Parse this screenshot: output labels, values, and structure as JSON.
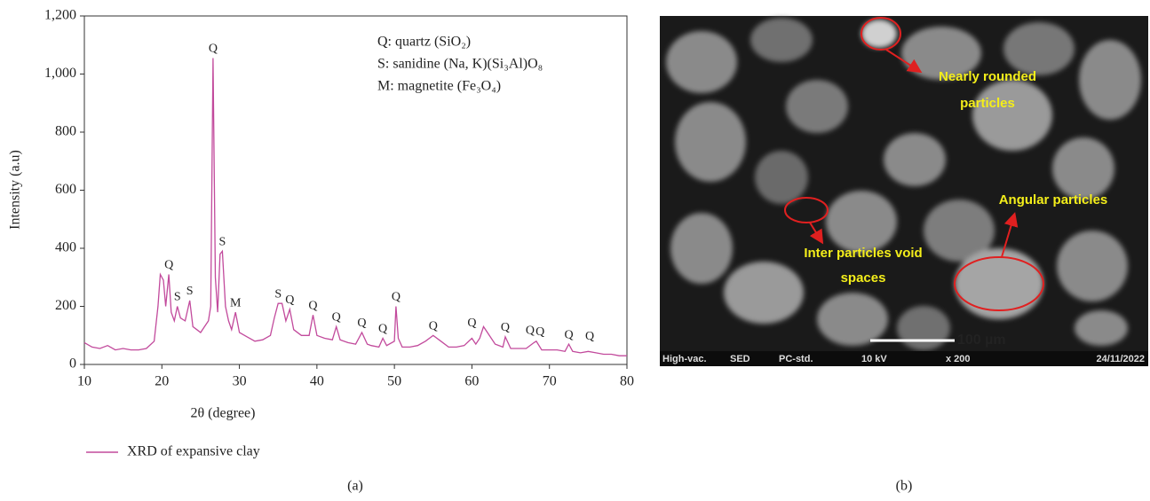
{
  "chart_data": {
    "type": "line",
    "xlabel": "2θ (degree)",
    "ylabel": "Intensity (a.u)",
    "xlim": [
      10,
      80
    ],
    "xticks": [
      10,
      20,
      30,
      40,
      50,
      60,
      70,
      80
    ],
    "ylim": [
      0,
      1200
    ],
    "yticks": [
      0,
      200,
      400,
      600,
      800,
      {
        "value": 1000,
        "label": "1,000"
      },
      {
        "value": 1200,
        "label": "1,200"
      }
    ],
    "x": [
      10,
      11,
      12,
      13,
      14,
      15,
      16,
      17,
      18,
      19,
      19.5,
      19.8,
      20.2,
      20.5,
      20.9,
      21.2,
      21.6,
      22,
      22.4,
      23,
      23.6,
      24,
      24.5,
      25,
      25.5,
      26,
      26.3,
      26.6,
      26.9,
      27.2,
      27.5,
      27.8,
      28.2,
      28.6,
      29,
      29.5,
      30,
      31,
      32,
      33,
      34,
      34.5,
      35,
      35.5,
      36,
      36.5,
      37,
      38,
      39,
      39.5,
      40,
      41,
      42,
      42.5,
      43,
      44,
      45,
      45.8,
      46.5,
      47,
      48,
      48.5,
      49,
      50,
      50.2,
      50.5,
      51,
      52,
      53,
      54,
      55,
      56,
      57,
      58,
      59,
      60,
      60.5,
      61,
      61.5,
      62,
      63,
      64,
      64.3,
      65,
      66,
      67,
      68,
      68.3,
      69,
      70,
      71,
      72,
      72.5,
      73,
      74,
      75,
      76,
      77,
      78,
      79,
      80
    ],
    "series": [
      {
        "name": "XRD of expansive clay",
        "color": "#c24a9c",
        "values": [
          75,
          60,
          55,
          65,
          50,
          55,
          50,
          50,
          55,
          80,
          200,
          310,
          290,
          200,
          310,
          180,
          150,
          200,
          160,
          150,
          220,
          130,
          120,
          110,
          130,
          150,
          200,
          1055,
          300,
          180,
          380,
          390,
          200,
          150,
          120,
          180,
          110,
          95,
          80,
          85,
          100,
          160,
          210,
          210,
          150,
          190,
          120,
          100,
          100,
          170,
          100,
          90,
          85,
          130,
          85,
          75,
          70,
          110,
          70,
          65,
          60,
          90,
          65,
          80,
          200,
          90,
          60,
          60,
          65,
          80,
          100,
          80,
          60,
          60,
          65,
          90,
          70,
          90,
          130,
          110,
          70,
          60,
          95,
          55,
          55,
          55,
          75,
          80,
          50,
          50,
          50,
          45,
          70,
          45,
          40,
          45,
          40,
          35,
          35,
          30,
          30
        ]
      }
    ],
    "notes": [
      "Q: quartz (SiO₂)",
      "S: sanidine (Na, K)(Si₃Al)O₈",
      "M: magnetite (Fe₃O₄)"
    ],
    "annotations": [
      {
        "text": "Q",
        "x": 20.9,
        "y": 310
      },
      {
        "text": "S",
        "x": 22,
        "y": 200
      },
      {
        "text": "S",
        "x": 23.6,
        "y": 220
      },
      {
        "text": "Q",
        "x": 26.6,
        "y": 1055
      },
      {
        "text": "S",
        "x": 27.8,
        "y": 390
      },
      {
        "text": "M",
        "x": 29.5,
        "y": 180
      },
      {
        "text": "S",
        "x": 35,
        "y": 210
      },
      {
        "text": "Q",
        "x": 36.5,
        "y": 190
      },
      {
        "text": "Q",
        "x": 39.5,
        "y": 170
      },
      {
        "text": "Q",
        "x": 42.5,
        "y": 130
      },
      {
        "text": "Q",
        "x": 45.8,
        "y": 110
      },
      {
        "text": "Q",
        "x": 48.5,
        "y": 90
      },
      {
        "text": "Q",
        "x": 50.2,
        "y": 200
      },
      {
        "text": "Q",
        "x": 55,
        "y": 100
      },
      {
        "text": "Q",
        "x": 60,
        "y": 110
      },
      {
        "text": "Q",
        "x": 64.3,
        "y": 95
      },
      {
        "text": "Q",
        "x": 67.5,
        "y": 85
      },
      {
        "text": "Q",
        "x": 68.8,
        "y": 80
      },
      {
        "text": "Q",
        "x": 72.5,
        "y": 70
      },
      {
        "text": "Q",
        "x": 75.2,
        "y": 65
      }
    ]
  },
  "panel_labels": [
    "(a)",
    "(b)"
  ],
  "sem_image": {
    "labels": [
      "Nearly rounded",
      "particles",
      "Angular particles",
      "Inter particles void",
      "spaces"
    ],
    "scale_bar": "100 µm",
    "footer": [
      "High-vac.",
      "SED",
      "PC-std.",
      "10 kV",
      "x 200",
      "24/11/2022"
    ]
  }
}
